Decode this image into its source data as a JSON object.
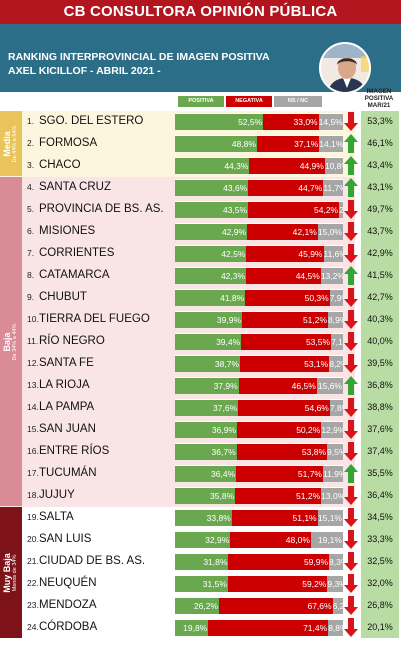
{
  "header": {
    "title": "CB CONSULTORA OPINIÓN PÚBLICA",
    "subtitle_line1": "RANKING INTERPROVINCIAL DE IMAGEN POSITIVA",
    "subtitle_line2": "AXEL KICILLOF - ABRIL 2021 -"
  },
  "legend": {
    "positiva": "POSITIVA",
    "negativa": "NEGATIVA",
    "nsnc": "NS / NC"
  },
  "mar_header": "IMAGEN POSITIVA MAR/21",
  "groups": [
    {
      "label": "Media",
      "range": "De 44% a 54%",
      "color": "#e8c45a",
      "band": "#fdf6df",
      "from": 0,
      "to": 2
    },
    {
      "label": "Baja",
      "range": "De 34% a 44%",
      "color": "#d98b96",
      "band": "#f9e4e6",
      "from": 3,
      "to": 17
    },
    {
      "label": "Muy Baja",
      "range": "Menos de 34%",
      "color": "#7d1219",
      "band": "#ffffff",
      "from": 18,
      "to": 23
    }
  ],
  "colors": {
    "positiva": "#6aa84f",
    "negativa": "#cc0000",
    "nsnc": "#a6a6a6",
    "up": "#33a532",
    "down": "#d7141a"
  },
  "chart_data": {
    "type": "bar",
    "title": "RANKING INTERPROVINCIAL DE IMAGEN POSITIVA",
    "series_names": [
      "POSITIVA",
      "NEGATIVA",
      "NS / NC"
    ],
    "rows": [
      {
        "rank": "1.",
        "province": "SGO. DEL ESTERO",
        "positiva": 52.5,
        "negativa": 33.0,
        "nsnc": 14.5,
        "pos_label": "52,5%",
        "neg_label": "33,0%",
        "ns_label": "14,5%",
        "trend": "down",
        "mar": "53,3%"
      },
      {
        "rank": "2.",
        "province": "FORMOSA",
        "positiva": 48.8,
        "negativa": 37.1,
        "nsnc": 14.1,
        "pos_label": "48,8%",
        "neg_label": "37,1%",
        "ns_label": "14,1%",
        "trend": "up",
        "mar": "46,1%"
      },
      {
        "rank": "3.",
        "province": "CHACO",
        "positiva": 44.3,
        "negativa": 44.9,
        "nsnc": 10.8,
        "pos_label": "44,3%",
        "neg_label": "44,9%",
        "ns_label": "10,8%",
        "trend": "up",
        "mar": "43,4%"
      },
      {
        "rank": "4.",
        "province": "SANTA CRUZ",
        "positiva": 43.6,
        "negativa": 44.7,
        "nsnc": 11.7,
        "pos_label": "43,6%",
        "neg_label": "44,7%",
        "ns_label": "11,7%",
        "trend": "up",
        "mar": "43,1%"
      },
      {
        "rank": "5.",
        "province": "PROVINCIA DE BS. AS.",
        "positiva": 43.5,
        "negativa": 54.2,
        "nsnc": 2.3,
        "pos_label": "43,5%",
        "neg_label": "54,2%",
        "ns_label": "2,3%",
        "trend": "down",
        "mar": "49,7%"
      },
      {
        "rank": "6.",
        "province": "MISIONES",
        "positiva": 42.9,
        "negativa": 42.1,
        "nsnc": 15.0,
        "pos_label": "42,9%",
        "neg_label": "42,1%",
        "ns_label": "15,0%",
        "trend": "down",
        "mar": "43,7%"
      },
      {
        "rank": "7.",
        "province": "CORRIENTES",
        "positiva": 42.5,
        "negativa": 45.9,
        "nsnc": 11.6,
        "pos_label": "42,5%",
        "neg_label": "45,9%",
        "ns_label": "11,6%",
        "trend": "down",
        "mar": "42,9%"
      },
      {
        "rank": "8.",
        "province": "CATAMARCA",
        "positiva": 42.3,
        "negativa": 44.5,
        "nsnc": 13.2,
        "pos_label": "42,3%",
        "neg_label": "44,5%",
        "ns_label": "13,2%",
        "trend": "up",
        "mar": "41,5%"
      },
      {
        "rank": "9.",
        "province": "CHUBUT",
        "positiva": 41.8,
        "negativa": 50.3,
        "nsnc": 7.9,
        "pos_label": "41,8%",
        "neg_label": "50,3%",
        "ns_label": "7,9%",
        "trend": "down",
        "mar": "42,7%"
      },
      {
        "rank": "10.",
        "province": "TIERRA DEL FUEGO",
        "positiva": 39.9,
        "negativa": 51.2,
        "nsnc": 8.9,
        "pos_label": "39,9%",
        "neg_label": "51,2%",
        "ns_label": "8,9%",
        "trend": "down",
        "mar": "40,3%"
      },
      {
        "rank": "11.",
        "province": "RÍO NEGRO",
        "positiva": 39.4,
        "negativa": 53.5,
        "nsnc": 7.1,
        "pos_label": "39,4%",
        "neg_label": "53,5%",
        "ns_label": "7,1%",
        "trend": "down",
        "mar": "40,0%"
      },
      {
        "rank": "12.",
        "province": "SANTA FE",
        "positiva": 38.7,
        "negativa": 53.1,
        "nsnc": 8.2,
        "pos_label": "38,7%",
        "neg_label": "53,1%",
        "ns_label": "8,2%",
        "trend": "down",
        "mar": "39,5%"
      },
      {
        "rank": "13.",
        "province": "LA RIOJA",
        "positiva": 37.9,
        "negativa": 46.5,
        "nsnc": 15.6,
        "pos_label": "37,9%",
        "neg_label": "46,5%",
        "ns_label": "15,6%",
        "trend": "up",
        "mar": "36,8%"
      },
      {
        "rank": "14.",
        "province": "LA PAMPA",
        "positiva": 37.6,
        "negativa": 54.6,
        "nsnc": 7.8,
        "pos_label": "37,6%",
        "neg_label": "54,6%",
        "ns_label": "7,8%",
        "trend": "down",
        "mar": "38,8%"
      },
      {
        "rank": "15.",
        "province": "SAN JUAN",
        "positiva": 36.9,
        "negativa": 50.2,
        "nsnc": 12.9,
        "pos_label": "36,9%",
        "neg_label": "50,2%",
        "ns_label": "12,9%",
        "trend": "down",
        "mar": "37,6%"
      },
      {
        "rank": "16.",
        "province": "ENTRE RÍOS",
        "positiva": 36.7,
        "negativa": 53.8,
        "nsnc": 9.5,
        "pos_label": "36,7%",
        "neg_label": "53,8%",
        "ns_label": "9,5%",
        "trend": "down",
        "mar": "37,4%"
      },
      {
        "rank": "17.",
        "province": "TUCUMÁN",
        "positiva": 36.4,
        "negativa": 51.7,
        "nsnc": 11.9,
        "pos_label": "36,4%",
        "neg_label": "51,7%",
        "ns_label": "11,9%",
        "trend": "up",
        "mar": "35,5%"
      },
      {
        "rank": "18.",
        "province": "JUJUY",
        "positiva": 35.8,
        "negativa": 51.2,
        "nsnc": 13.0,
        "pos_label": "35,8%",
        "neg_label": "51,2%",
        "ns_label": "13,0%",
        "trend": "down",
        "mar": "36,4%"
      },
      {
        "rank": "19.",
        "province": "SALTA",
        "positiva": 33.8,
        "negativa": 51.1,
        "nsnc": 15.1,
        "pos_label": "33,8%",
        "neg_label": "51,1%",
        "ns_label": "15,1%",
        "trend": "down",
        "mar": "34,5%"
      },
      {
        "rank": "20.",
        "province": "SAN LUIS",
        "positiva": 32.9,
        "negativa": 48.0,
        "nsnc": 19.1,
        "pos_label": "32,9%",
        "neg_label": "48,0%",
        "ns_label": "19,1%",
        "trend": "down",
        "mar": "33,3%"
      },
      {
        "rank": "21.",
        "province": "CIUDAD DE BS. AS.",
        "positiva": 31.8,
        "negativa": 59.9,
        "nsnc": 8.3,
        "pos_label": "31,8%",
        "neg_label": "59,9%",
        "ns_label": "8,3%",
        "trend": "down",
        "mar": "32,5%"
      },
      {
        "rank": "22.",
        "province": "NEUQUÉN",
        "positiva": 31.5,
        "negativa": 59.2,
        "nsnc": 9.3,
        "pos_label": "31,5%",
        "neg_label": "59,2%",
        "ns_label": "9,3%",
        "trend": "down",
        "mar": "32,0%"
      },
      {
        "rank": "23.",
        "province": "MENDOZA",
        "positiva": 26.2,
        "negativa": 67.6,
        "nsnc": 6.2,
        "pos_label": "26,2%",
        "neg_label": "67,6%",
        "ns_label": "6,2%",
        "trend": "down",
        "mar": "26,8%"
      },
      {
        "rank": "24.",
        "province": "CÓRDOBA",
        "positiva": 19.8,
        "negativa": 71.4,
        "nsnc": 8.8,
        "pos_label": "19,8%",
        "neg_label": "71,4%",
        "ns_label": "8,8%",
        "trend": "down",
        "mar": "20,1%"
      }
    ]
  }
}
